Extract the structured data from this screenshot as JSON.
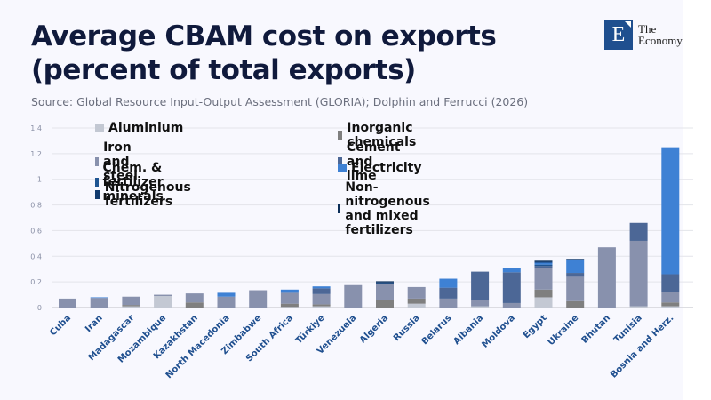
{
  "header": {
    "title": "Average CBAM cost on exports (percent of total exports)",
    "source": "Source: Global Resource Input-Output Assessment (GLORIA); Dolphin and Ferrucci (2026)"
  },
  "logo": {
    "letter": "E",
    "line1": "The",
    "line2": "Economy"
  },
  "chart_data": {
    "type": "bar",
    "stacked": true,
    "title": "Average CBAM cost on exports (percent of total exports)",
    "xlabel": "",
    "ylabel": "",
    "ylim": [
      0,
      1.4
    ],
    "yticks": [
      0,
      0.2,
      0.4,
      0.6,
      0.8,
      1,
      1.2,
      1.4
    ],
    "ytick_labels": [
      "0",
      "0.2",
      "0.4",
      "0.6",
      "0.8",
      "1",
      "1.2",
      "1.4"
    ],
    "grid": true,
    "legend_position": "top-left",
    "categories": [
      "Cuba",
      "Iran",
      "Madagascar",
      "Mozambique",
      "Kazakhstan",
      "North Macedonia",
      "Zimbabwe",
      "South Africa",
      "Türkiye",
      "Venezuela",
      "Algeria",
      "Russia",
      "Belarus",
      "Albania",
      "Moldova",
      "Egypt",
      "Ukraine",
      "Bhutan",
      "Tunisia",
      "Bosnia and Herz."
    ],
    "series": [
      {
        "name": "Aluminium",
        "color": "#c3c8d3",
        "values": [
          0,
          0,
          0.01,
          0.09,
          0,
          0,
          0,
          0.005,
          0.01,
          0,
          0,
          0.03,
          0,
          0.01,
          0,
          0.08,
          0,
          0,
          0.01,
          0.01
        ]
      },
      {
        "name": "Inorganic chemicals",
        "color": "#7f7f7f",
        "values": [
          0,
          0,
          0.01,
          0,
          0.04,
          0,
          0,
          0.025,
          0.015,
          0,
          0.06,
          0.04,
          0,
          0,
          0,
          0.06,
          0.05,
          0,
          0,
          0.03
        ]
      },
      {
        "name": "Iron and steel",
        "color": "#8891ad",
        "values": [
          0.07,
          0.075,
          0.065,
          0.01,
          0.07,
          0.085,
          0.135,
          0.085,
          0.08,
          0.175,
          0.125,
          0.09,
          0.07,
          0.05,
          0.035,
          0.17,
          0.19,
          0.47,
          0.51,
          0.08
        ]
      },
      {
        "name": "Cement and lime",
        "color": "#4c6796",
        "values": [
          0,
          0,
          0,
          0,
          0,
          0,
          0,
          0,
          0.045,
          0,
          0,
          0,
          0.085,
          0.22,
          0.24,
          0.015,
          0.03,
          0,
          0.14,
          0.14
        ]
      },
      {
        "name": "Chem. & fertilizer minerals",
        "color": "#1f5592",
        "values": [
          0,
          0,
          0,
          0,
          0,
          0,
          0,
          0,
          0,
          0,
          0.005,
          0,
          0,
          0,
          0,
          0.01,
          0,
          0,
          0,
          0
        ]
      },
      {
        "name": "Electricity",
        "color": "#3e81d4",
        "values": [
          0,
          0.005,
          0,
          0,
          0,
          0.03,
          0,
          0.025,
          0.015,
          0,
          0,
          0,
          0.07,
          0,
          0.03,
          0.015,
          0.105,
          0,
          0,
          0.99
        ]
      },
      {
        "name": "Nitrogenous fertilizers",
        "color": "#123b6e",
        "values": [
          0,
          0,
          0,
          0,
          0,
          0,
          0,
          0,
          0,
          0,
          0.01,
          0,
          0,
          0,
          0,
          0.01,
          0.005,
          0,
          0,
          0
        ]
      },
      {
        "name": "Non-nitrogenous and mixed fertilizers",
        "color": "#0b2e58",
        "values": [
          0,
          0,
          0,
          0,
          0,
          0,
          0,
          0,
          0,
          0,
          0.005,
          0,
          0,
          0,
          0,
          0.005,
          0,
          0,
          0,
          0
        ]
      }
    ]
  }
}
